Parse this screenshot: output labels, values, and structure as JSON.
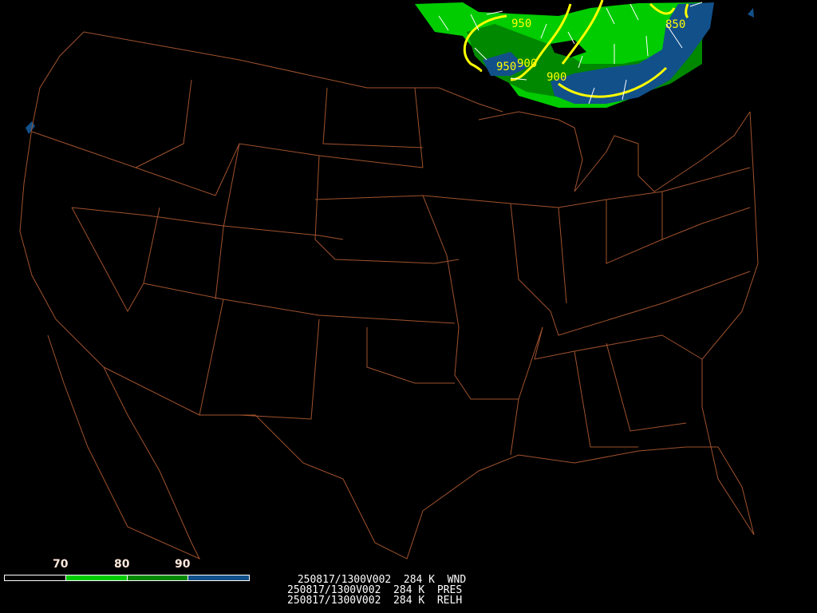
{
  "map": {
    "projection": "CONUS",
    "border_color": "#a0522d",
    "contour_color": "#ffff00",
    "barb_color": "#ffffff",
    "contour_labels": [
      "950",
      "900",
      "950",
      "900",
      "850"
    ]
  },
  "colorbar": {
    "labels": [
      "70",
      "80",
      "90"
    ],
    "colors": [
      "#000000",
      "#00cc00",
      "#008800",
      "#12508a"
    ]
  },
  "info_lines": [
    " 250817/1300V002  284 K  WND",
    "250817/1300V002  284 K  PRES",
    "250817/1300V002  284 K  RELH"
  ]
}
